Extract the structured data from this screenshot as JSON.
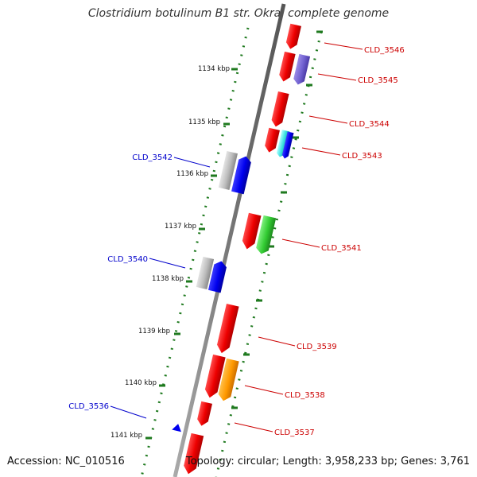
{
  "title": "Clostridium botulinum B1 str. Okra, complete genome",
  "footer": {
    "accession": "Accession: NC_010516",
    "topology": "Topology: circular; Length: 3,958,233 bp; Genes: 3,761"
  },
  "colors": {
    "backbone": "#888888",
    "tick_mark": "#1f7a1f",
    "forward_label": "#cc0000",
    "reverse_label": "#0000cc",
    "kbp_label": "#111111"
  },
  "kbp_markers": [
    "1134 kbp",
    "1135 kbp",
    "1136 kbp",
    "1137 kbp",
    "1138 kbp",
    "1139 kbp",
    "1140 kbp",
    "1141 kbp"
  ],
  "forward_labels": [
    "CLD_3546",
    "CLD_3545",
    "CLD_3544",
    "CLD_3543",
    "CLD_3541",
    "CLD_3539",
    "CLD_3538",
    "CLD_3537"
  ],
  "reverse_labels": [
    "CLD_3542",
    "CLD_3540",
    "CLD_3536"
  ],
  "gene_colors": [
    "red",
    "purple",
    "cyan",
    "blue",
    "green",
    "orange",
    "grey"
  ]
}
